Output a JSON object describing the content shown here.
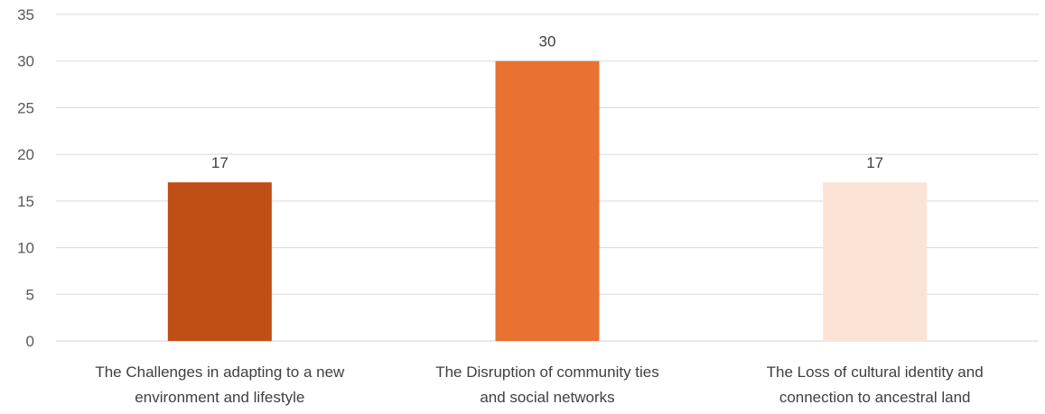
{
  "chart_data": {
    "type": "bar",
    "title": "",
    "xlabel": "",
    "ylabel": "",
    "categories": [
      [
        "The Challenges in adapting to a new",
        "environment and lifestyle"
      ],
      [
        "The Disruption of community ties",
        "and social networks"
      ],
      [
        "The Loss of cultural identity and",
        "connection to ancestral land"
      ]
    ],
    "values": [
      17,
      30,
      17
    ],
    "colors": [
      "#c04f15",
      "#e97132",
      "#fbe3d6"
    ],
    "ylim": [
      0,
      35
    ],
    "yticks": [
      0,
      5,
      10,
      15,
      20,
      25,
      30,
      35
    ],
    "grid": true,
    "data_labels": true,
    "legend": "none"
  }
}
